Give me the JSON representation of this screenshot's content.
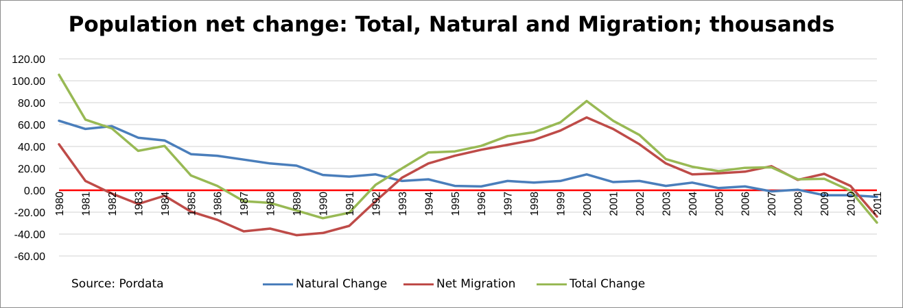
{
  "colors": {
    "natural": "#4a7ebb",
    "migration": "#be4b48",
    "total": "#98b954",
    "zero_line": "#ff0000",
    "grid": "#d0d0d0"
  },
  "source_note": "Source: Pordata",
  "chart_data": {
    "type": "line",
    "title": "Population net change: Total, Natural and Migration; thousands",
    "xlabel": "",
    "ylabel": "",
    "ylim": [
      -60,
      120
    ],
    "yticks": [
      "120.00",
      "100.00",
      "80.00",
      "60.00",
      "40.00",
      "20.00",
      "0.00",
      "-20.00",
      "-40.00",
      "-60.00"
    ],
    "grid": true,
    "legend_position": "bottom",
    "categories": [
      "1980",
      "1981",
      "1982",
      "1983",
      "1984",
      "1985",
      "1986",
      "1987",
      "1988",
      "1989",
      "1990",
      "1991",
      "1992",
      "1993",
      "1994",
      "1995",
      "1996",
      "1997",
      "1998",
      "1999",
      "2000",
      "2001",
      "2002",
      "2003",
      "2004",
      "2005",
      "2006",
      "2007",
      "2008",
      "2009",
      "2010",
      "2011"
    ],
    "series": [
      {
        "key": "natural",
        "name": "Natural Change",
        "values": [
          63.5,
          56,
          58.5,
          48,
          45.5,
          33,
          31.5,
          28,
          24.5,
          22.5,
          14,
          12.5,
          14.5,
          8.5,
          10,
          4,
          3.5,
          8.5,
          7,
          8.5,
          14.5,
          7.5,
          8.5,
          4,
          7,
          2,
          3.5,
          -1,
          0.5,
          -4.5,
          -4.5,
          -6
        ]
      },
      {
        "key": "migration",
        "name": "Net Migration",
        "values": [
          42,
          8.5,
          -3,
          -12.5,
          -5,
          -19.5,
          -27,
          -37.5,
          -35,
          -41,
          -39,
          -32.5,
          -10,
          11.5,
          24.5,
          31.5,
          37,
          41.5,
          46,
          54.5,
          66.5,
          56,
          42,
          24.5,
          14.5,
          15.5,
          17,
          22,
          9.5,
          15,
          4,
          -24
        ]
      },
      {
        "key": "total",
        "name": "Total Change",
        "values": [
          105.5,
          64.5,
          56.5,
          36,
          40.5,
          13.5,
          4,
          -10,
          -11.5,
          -18.5,
          -25.5,
          -20.5,
          5,
          20,
          34.5,
          35.5,
          40.5,
          49.5,
          53,
          62,
          81.5,
          63.5,
          50.5,
          28.5,
          21.5,
          17.5,
          20.5,
          21,
          10,
          10.5,
          -0.5,
          -29.5
        ]
      }
    ]
  }
}
